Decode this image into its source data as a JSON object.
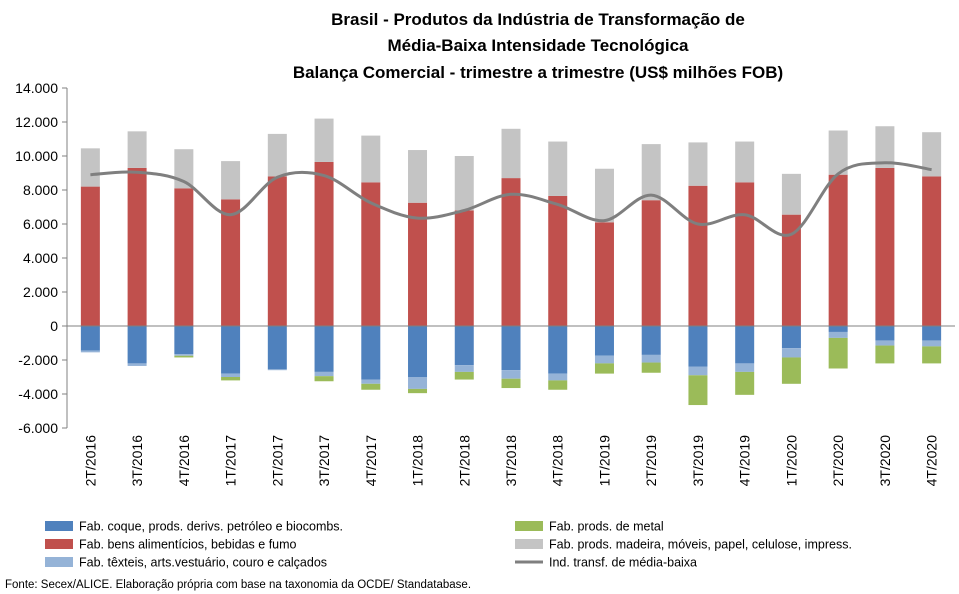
{
  "chart_data": {
    "type": "bar",
    "stacked": true,
    "title": [
      "Brasil - Produtos da Indústria de Transformação de",
      "Média-Baixa Intensidade Tecnológica",
      "Balança Comercial - trimestre a trimestre (US$ milhões FOB)"
    ],
    "categories": [
      "2T/2016",
      "3T/2016",
      "4T/2016",
      "1T/2017",
      "2T/2017",
      "3T/2017",
      "4T/2017",
      "1T/2018",
      "2T/2018",
      "3T/2018",
      "4T/2018",
      "1T/2019",
      "2T/2019",
      "3T/2019",
      "4T/2019",
      "1T/2020",
      "2T/2020",
      "3T/2020",
      "4T/2020"
    ],
    "ylim": [
      -6000,
      14000
    ],
    "yticks": [
      -6000,
      -4000,
      -2000,
      0,
      2000,
      4000,
      6000,
      8000,
      10000,
      12000,
      14000
    ],
    "ytick_labels": [
      "-6.000",
      "-4.000",
      "-2.000",
      "0",
      "2.000",
      "4.000",
      "6.000",
      "8.000",
      "10.000",
      "12.000",
      "14.000"
    ],
    "grid": false,
    "legend_position": "bottom",
    "series": [
      {
        "name": "Fab. coque, prods. derivs. petróleo e biocombs.",
        "color": "#4f81bd",
        "values": [
          -1450,
          -2200,
          -1650,
          -2800,
          -2550,
          -2700,
          -3150,
          -3000,
          -2300,
          -2600,
          -2800,
          -1750,
          -1700,
          -2400,
          -2200,
          -1300,
          -350,
          -850,
          -850
        ]
      },
      {
        "name": "Fab. bens alimentícios, bebidas e fumo",
        "color": "#c0504d",
        "values": [
          8200,
          9300,
          8100,
          7450,
          8800,
          9650,
          8450,
          7250,
          6800,
          8700,
          7650,
          6100,
          7400,
          8250,
          8450,
          6550,
          8900,
          9300,
          8800
        ]
      },
      {
        "name": "Fab. têxteis, arts.vestuário, couro e calçados",
        "color": "#95b3d7",
        "values": [
          -100,
          -150,
          -100,
          -200,
          -50,
          -250,
          -250,
          -700,
          -400,
          -500,
          -400,
          -450,
          -450,
          -500,
          -500,
          -550,
          -350,
          -300,
          -350
        ]
      },
      {
        "name": "Fab. prods. de metal",
        "color": "#9bbb59",
        "values": [
          0,
          0,
          -100,
          -200,
          0,
          -300,
          -350,
          -250,
          -450,
          -550,
          -550,
          -600,
          -600,
          -1750,
          -1350,
          -1550,
          -1800,
          -1050,
          -1000
        ]
      },
      {
        "name": "Fab. prods. madeira, móveis, papel, celulose, impress.",
        "color": "#c4c4c4",
        "values": [
          2250,
          2150,
          2300,
          2250,
          2500,
          2550,
          2750,
          3100,
          3200,
          2900,
          3200,
          3150,
          3300,
          2550,
          2400,
          2400,
          2600,
          2450,
          2600
        ]
      }
    ],
    "line_series": {
      "name": "Ind. transf. de média-baixa",
      "color": "#7f7f7f",
      "values": [
        8900,
        9050,
        8500,
        6550,
        8750,
        8850,
        7250,
        6350,
        6800,
        7750,
        7150,
        6200,
        7700,
        6000,
        6550,
        5400,
        8950,
        9600,
        9200
      ]
    }
  },
  "legend": [
    {
      "label": "Fab. coque, prods. derivs. petróleo e biocombs.",
      "color": "#4f81bd",
      "kind": "box"
    },
    {
      "label": "Fab. prods. de metal",
      "color": "#9bbb59",
      "kind": "box"
    },
    {
      "label": "Fab. bens alimentícios, bebidas e fumo",
      "color": "#c0504d",
      "kind": "box"
    },
    {
      "label": "Fab. prods. madeira, móveis, papel, celulose, impress.",
      "color": "#c4c4c4",
      "kind": "box"
    },
    {
      "label": "Fab. têxteis, arts.vestuário, couro e calçados",
      "color": "#95b3d7",
      "kind": "box"
    },
    {
      "label": "Ind. transf. de média-baixa",
      "color": "#7f7f7f",
      "kind": "line"
    }
  ],
  "source": "Fonte: Secex/ALICE. Elaboração própria com base na taxonomia da OCDE/ Standatabase."
}
